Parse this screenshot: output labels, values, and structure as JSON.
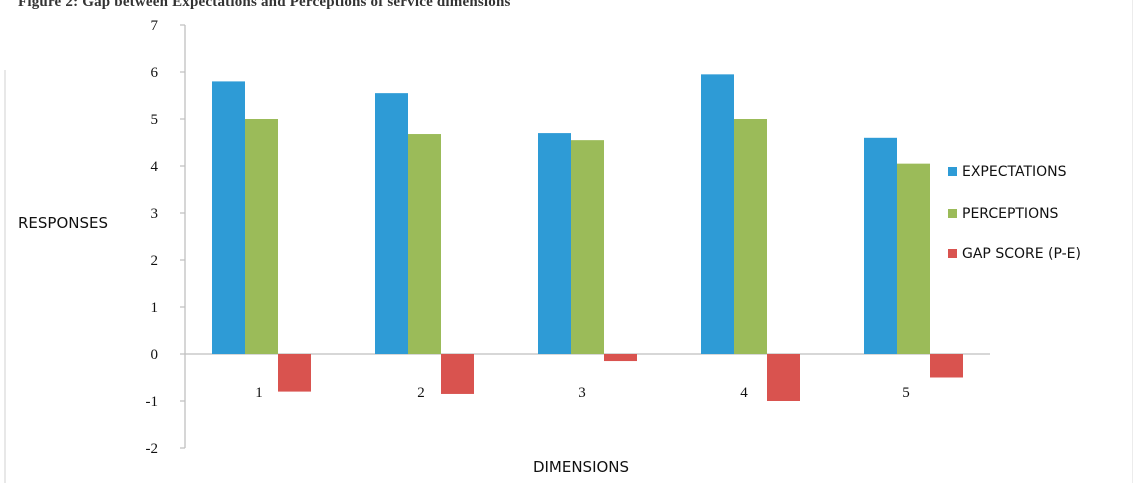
{
  "caption": "Figure 2: Gap between Expectations and Perceptions of service dimensions",
  "chart_data": {
    "type": "bar",
    "categories": [
      "1",
      "2",
      "3",
      "4",
      "5"
    ],
    "series": [
      {
        "name": "EXPECTATIONS",
        "color": "#2e9bd6",
        "values": [
          5.8,
          5.55,
          4.7,
          5.95,
          4.6
        ]
      },
      {
        "name": "PERCEPTIONS",
        "color": "#9bbb59",
        "values": [
          5.0,
          4.68,
          4.55,
          5.0,
          4.05
        ]
      },
      {
        "name": "GAP SCORE (P-E)",
        "color": "#d9534f",
        "values": [
          -0.8,
          -0.85,
          -0.15,
          -1.0,
          -0.5
        ]
      }
    ],
    "xlabel": "DIMENSIONS",
    "ylabel": "RESPONSES",
    "ylim": [
      -2,
      7
    ],
    "yticks": [
      "-2",
      "-1",
      "0",
      "1",
      "2",
      "3",
      "4",
      "5",
      "6",
      "7"
    ],
    "grid": false,
    "legend": "right"
  }
}
